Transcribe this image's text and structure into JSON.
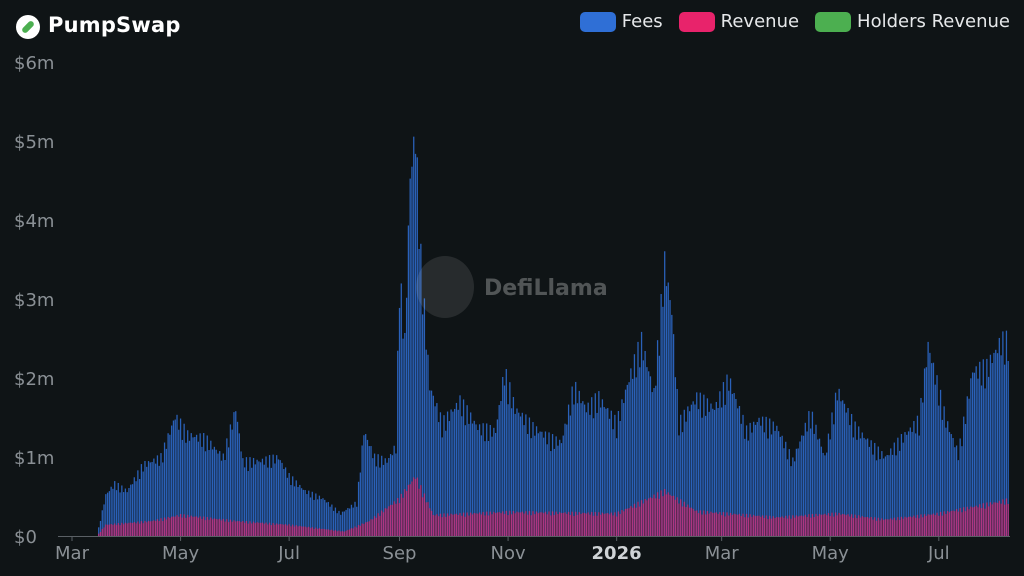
{
  "header": {
    "title": "PumpSwap",
    "logo_icon": "pumpswap-pill-logo"
  },
  "legend": [
    {
      "label": "Fees",
      "color": "#2f6fd6"
    },
    {
      "label": "Revenue",
      "color": "#e8236b"
    },
    {
      "label": "Holders Revenue",
      "color": "#4caf50"
    }
  ],
  "watermark": {
    "text": "DefiLlama",
    "icon": "llama-icon"
  },
  "chart_data": {
    "type": "bar",
    "x_start": "2025-03-01",
    "x_end": "2026-08-10",
    "x_ticks": [
      {
        "date": "2025-03-01",
        "label": "Mar",
        "bold": false
      },
      {
        "date": "2025-05-01",
        "label": "May",
        "bold": false
      },
      {
        "date": "2025-07-01",
        "label": "Jul",
        "bold": false
      },
      {
        "date": "2025-09-01",
        "label": "Sep",
        "bold": false
      },
      {
        "date": "2025-11-01",
        "label": "Nov",
        "bold": false
      },
      {
        "date": "2026-01-01",
        "label": "2026",
        "bold": true
      },
      {
        "date": "2026-03-01",
        "label": "Mar",
        "bold": false
      },
      {
        "date": "2026-05-01",
        "label": "May",
        "bold": false
      },
      {
        "date": "2026-07-01",
        "label": "Jul",
        "bold": false
      }
    ],
    "y_ticks": [
      {
        "value": 0,
        "label": "$0"
      },
      {
        "value": 1000000,
        "label": "$1m"
      },
      {
        "value": 2000000,
        "label": "$2m"
      },
      {
        "value": 3000000,
        "label": "$3m"
      },
      {
        "value": 4000000,
        "label": "$4m"
      },
      {
        "value": 5000000,
        "label": "$5m"
      },
      {
        "value": 6000000,
        "label": "$6m"
      }
    ],
    "ylim": [
      0,
      6000000
    ],
    "stacked": false,
    "grid": false,
    "legend_position": "top-right",
    "series": [
      {
        "name": "Fees",
        "color": "#2f6fd6",
        "points": [
          [
            "2025-03-15",
            0
          ],
          [
            "2025-03-20",
            550000
          ],
          [
            "2025-03-25",
            700000
          ],
          [
            "2025-04-01",
            600000
          ],
          [
            "2025-04-10",
            950000
          ],
          [
            "2025-04-20",
            1050000
          ],
          [
            "2025-04-28",
            1600000
          ],
          [
            "2025-05-05",
            1350000
          ],
          [
            "2025-05-15",
            1300000
          ],
          [
            "2025-05-25",
            1050000
          ],
          [
            "2025-06-01",
            1700000
          ],
          [
            "2025-06-05",
            1000000
          ],
          [
            "2025-06-15",
            1000000
          ],
          [
            "2025-06-25",
            1050000
          ],
          [
            "2025-07-01",
            800000
          ],
          [
            "2025-07-10",
            600000
          ],
          [
            "2025-07-20",
            500000
          ],
          [
            "2025-07-30",
            300000
          ],
          [
            "2025-08-08",
            450000
          ],
          [
            "2025-08-12",
            1400000
          ],
          [
            "2025-08-18",
            1050000
          ],
          [
            "2025-08-25",
            1000000
          ],
          [
            "2025-08-30",
            1200000
          ],
          [
            "2025-09-01",
            3500000
          ],
          [
            "2025-09-04",
            2600000
          ],
          [
            "2025-09-07",
            4800000
          ],
          [
            "2025-09-10",
            5400000
          ],
          [
            "2025-09-13",
            3700000
          ],
          [
            "2025-09-18",
            2000000
          ],
          [
            "2025-09-25",
            1500000
          ],
          [
            "2025-10-05",
            1800000
          ],
          [
            "2025-10-15",
            1450000
          ],
          [
            "2025-10-25",
            1400000
          ],
          [
            "2025-10-30",
            2200000
          ],
          [
            "2025-11-05",
            1700000
          ],
          [
            "2025-11-15",
            1450000
          ],
          [
            "2025-11-25",
            1300000
          ],
          [
            "2025-12-01",
            1250000
          ],
          [
            "2025-12-08",
            2000000
          ],
          [
            "2025-12-15",
            1700000
          ],
          [
            "2025-12-22",
            1850000
          ],
          [
            "2026-01-01",
            1500000
          ],
          [
            "2026-01-08",
            2100000
          ],
          [
            "2026-01-15",
            2600000
          ],
          [
            "2026-01-22",
            1900000
          ],
          [
            "2026-01-28",
            3650000
          ],
          [
            "2026-02-01",
            3000000
          ],
          [
            "2026-02-05",
            1500000
          ],
          [
            "2026-02-15",
            1850000
          ],
          [
            "2026-02-25",
            1700000
          ],
          [
            "2026-03-05",
            2100000
          ],
          [
            "2026-03-15",
            1400000
          ],
          [
            "2026-03-22",
            1550000
          ],
          [
            "2026-04-01",
            1450000
          ],
          [
            "2026-04-10",
            1000000
          ],
          [
            "2026-04-20",
            1650000
          ],
          [
            "2026-04-28",
            1050000
          ],
          [
            "2026-05-05",
            1950000
          ],
          [
            "2026-05-15",
            1450000
          ],
          [
            "2026-05-25",
            1200000
          ],
          [
            "2026-06-01",
            1050000
          ],
          [
            "2026-06-10",
            1300000
          ],
          [
            "2026-06-20",
            1550000
          ],
          [
            "2026-06-25",
            2550000
          ],
          [
            "2026-07-05",
            1550000
          ],
          [
            "2026-07-12",
            1100000
          ],
          [
            "2026-07-20",
            2200000
          ],
          [
            "2026-07-28",
            2250000
          ],
          [
            "2026-08-05",
            2600000
          ],
          [
            "2026-08-09",
            2600000
          ]
        ]
      },
      {
        "name": "Revenue",
        "color": "#e8236b",
        "points": [
          [
            "2025-03-15",
            0
          ],
          [
            "2025-03-20",
            150000
          ],
          [
            "2025-04-15",
            200000
          ],
          [
            "2025-05-01",
            280000
          ],
          [
            "2025-06-01",
            200000
          ],
          [
            "2025-07-01",
            150000
          ],
          [
            "2025-08-01",
            60000
          ],
          [
            "2025-08-15",
            200000
          ],
          [
            "2025-09-01",
            500000
          ],
          [
            "2025-09-10",
            800000
          ],
          [
            "2025-09-20",
            280000
          ],
          [
            "2025-11-01",
            320000
          ],
          [
            "2026-01-01",
            300000
          ],
          [
            "2026-01-28",
            600000
          ],
          [
            "2026-02-15",
            330000
          ],
          [
            "2026-04-01",
            250000
          ],
          [
            "2026-05-05",
            300000
          ],
          [
            "2026-06-01",
            220000
          ],
          [
            "2026-07-01",
            300000
          ],
          [
            "2026-08-09",
            480000
          ]
        ]
      },
      {
        "name": "Holders Revenue",
        "color": "#4caf50",
        "points": [
          [
            "2025-03-15",
            0
          ],
          [
            "2026-08-09",
            0
          ]
        ]
      }
    ]
  }
}
